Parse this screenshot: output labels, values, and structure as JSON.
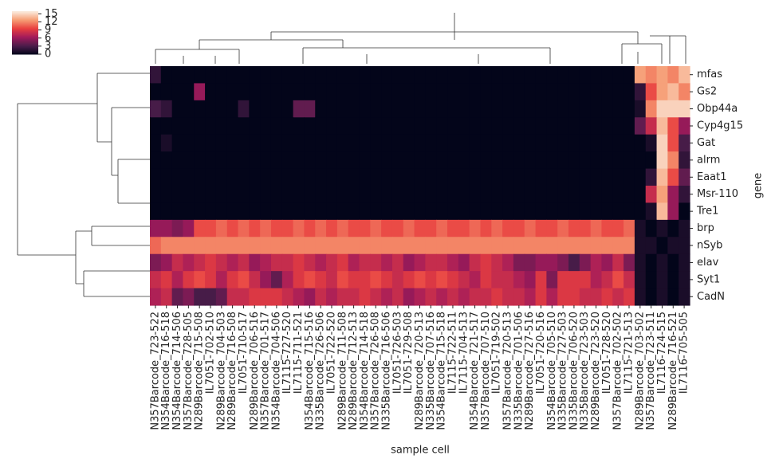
{
  "chart_data": {
    "type": "heatmap",
    "x_categories": [
      "N357Barcode_723-522",
      "N354Barcode_716-518",
      "N354Barcode_714-506",
      "N357Barcode_728-505",
      "N289Barcode_715-508",
      "IL7051-702-510",
      "N289Barcode_704-503",
      "N289Barcode_716-508",
      "IL7051-710-517",
      "N289Barcode_706-516",
      "N357Barcode_701-517",
      "N354Barcode_704-506",
      "IL7115-727-520",
      "IL7115-711-521",
      "N354Barcode_715-516",
      "N335Barcode_726-506",
      "IL7051-722-520",
      "N289Barcode_711-508",
      "N289Barcode_712-513",
      "N354Barcode_714-518",
      "N357Barcode_726-508",
      "N335Barcode_716-506",
      "IL7051-726-503",
      "IL7051-729-508",
      "N289Barcode_720-513",
      "N335Barcode_707-516",
      "N354Barcode_715-518",
      "IL7115-722-511",
      "IL7115-704-513",
      "N354Barcode_721-517",
      "N357Barcode_707-510",
      "IL7051-719-502",
      "N357Barcode_720-513",
      "N335Barcode_701-506",
      "N289Barcode_727-516",
      "IL7051-720-516",
      "N354Barcode_705-510",
      "N335Barcode_727-503",
      "N335Barcode_706-520",
      "N335Barcode_723-503",
      "N289Barcode_723-520",
      "IL7051-728-520",
      "N357Barcode_702-502",
      "IL7115-721-513",
      "N289Barcode_703-502",
      "N357Barcode_723-511",
      "IL7116-724-515",
      "N289Barcode_716-521",
      "IL7116-705-505"
    ],
    "y_categories": [
      "mfas",
      "Gs2",
      "Obp44a",
      "Cyp4g15",
      "Gat",
      "alrm",
      "Eaat1",
      "Msr-110",
      "Tre1",
      "brp",
      "nSyb",
      "elav",
      "Syt1",
      "CadN"
    ],
    "values": [
      [
        2,
        0,
        0,
        0,
        0,
        0,
        0,
        0,
        0,
        0,
        0,
        0,
        0,
        0,
        0,
        0,
        0,
        0,
        0,
        0,
        0,
        0,
        0,
        0,
        0,
        0,
        0,
        0,
        0,
        0,
        0,
        0,
        0,
        0,
        0,
        0,
        0,
        0,
        0,
        0,
        0,
        0,
        0,
        0,
        13,
        12,
        13,
        12,
        14
      ],
      [
        0,
        0,
        0,
        0,
        6,
        0,
        0,
        0,
        0,
        0,
        0,
        0,
        0,
        0,
        0,
        0,
        0,
        0,
        0,
        0,
        0,
        0,
        0,
        0,
        0,
        0,
        0,
        0,
        0,
        0,
        0,
        0,
        0,
        0,
        0,
        0,
        0,
        0,
        0,
        0,
        0,
        0,
        0,
        0,
        2,
        10,
        13,
        14,
        12
      ],
      [
        3,
        2,
        0,
        0,
        0,
        0,
        0,
        0,
        2,
        0,
        0,
        0,
        0,
        4,
        4,
        0,
        0,
        0,
        0,
        0,
        0,
        0,
        0,
        0,
        0,
        0,
        0,
        0,
        0,
        0,
        0,
        0,
        0,
        0,
        0,
        0,
        0,
        0,
        0,
        0,
        0,
        0,
        0,
        0,
        1,
        12,
        15,
        15,
        15
      ],
      [
        0,
        0,
        0,
        0,
        0,
        0,
        0,
        0,
        0,
        0,
        0,
        0,
        0,
        0,
        0,
        0,
        0,
        0,
        0,
        0,
        0,
        0,
        0,
        0,
        0,
        0,
        0,
        0,
        0,
        0,
        0,
        0,
        0,
        0,
        0,
        0,
        0,
        0,
        0,
        0,
        0,
        0,
        0,
        0,
        4,
        8,
        14,
        10,
        6
      ],
      [
        0,
        1,
        0,
        0,
        0,
        0,
        0,
        0,
        0,
        0,
        0,
        0,
        0,
        0,
        0,
        0,
        0,
        0,
        0,
        0,
        0,
        0,
        0,
        0,
        0,
        0,
        0,
        0,
        0,
        0,
        0,
        0,
        0,
        0,
        0,
        0,
        0,
        0,
        0,
        0,
        0,
        0,
        0,
        0,
        0,
        1,
        15,
        10,
        3
      ],
      [
        0,
        0,
        0,
        0,
        0,
        0,
        0,
        0,
        0,
        0,
        0,
        0,
        0,
        0,
        0,
        0,
        0,
        0,
        0,
        0,
        0,
        0,
        0,
        0,
        0,
        0,
        0,
        0,
        0,
        0,
        0,
        0,
        0,
        0,
        0,
        0,
        0,
        0,
        0,
        0,
        0,
        0,
        0,
        0,
        0,
        0,
        15,
        12,
        2
      ],
      [
        0,
        0,
        0,
        0,
        0,
        0,
        0,
        0,
        0,
        0,
        0,
        0,
        0,
        0,
        0,
        0,
        0,
        0,
        0,
        0,
        0,
        0,
        0,
        0,
        0,
        0,
        0,
        0,
        0,
        0,
        0,
        0,
        0,
        0,
        0,
        0,
        0,
        0,
        0,
        0,
        0,
        0,
        0,
        0,
        0,
        2,
        14,
        10,
        4
      ],
      [
        0,
        0,
        0,
        0,
        0,
        0,
        0,
        0,
        0,
        0,
        0,
        0,
        0,
        0,
        0,
        0,
        0,
        0,
        0,
        0,
        0,
        0,
        0,
        0,
        0,
        0,
        0,
        0,
        0,
        0,
        0,
        0,
        0,
        0,
        0,
        0,
        0,
        0,
        0,
        0,
        0,
        0,
        0,
        0,
        0,
        8,
        13,
        6,
        2
      ],
      [
        0,
        0,
        0,
        0,
        0,
        0,
        0,
        0,
        0,
        0,
        0,
        0,
        0,
        0,
        0,
        0,
        0,
        0,
        0,
        0,
        0,
        0,
        0,
        0,
        0,
        0,
        0,
        0,
        0,
        0,
        0,
        0,
        0,
        0,
        0,
        0,
        0,
        0,
        0,
        0,
        0,
        0,
        0,
        0,
        0,
        1,
        14,
        6,
        0
      ],
      [
        6,
        6,
        5,
        6,
        10,
        10,
        11,
        10,
        11,
        10,
        11,
        10,
        10,
        11,
        10,
        11,
        10,
        11,
        10,
        10,
        11,
        10,
        10,
        11,
        10,
        10,
        11,
        10,
        10,
        11,
        10,
        11,
        10,
        10,
        11,
        10,
        10,
        11,
        10,
        10,
        11,
        10,
        10,
        11,
        1,
        0,
        1,
        0,
        1
      ],
      [
        11,
        12,
        12,
        12,
        12,
        12,
        12,
        12,
        12,
        12,
        12,
        12,
        12,
        12,
        12,
        12,
        12,
        12,
        12,
        12,
        12,
        12,
        12,
        12,
        12,
        12,
        12,
        12,
        12,
        12,
        12,
        12,
        12,
        12,
        12,
        12,
        12,
        12,
        12,
        12,
        12,
        12,
        12,
        12,
        1,
        1,
        0,
        1,
        1
      ],
      [
        5,
        6,
        8,
        7,
        8,
        9,
        8,
        7,
        8,
        6,
        7,
        8,
        8,
        9,
        8,
        7,
        8,
        9,
        7,
        8,
        8,
        7,
        8,
        6,
        7,
        8,
        8,
        7,
        6,
        8,
        9,
        8,
        7,
        5,
        5,
        6,
        6,
        5,
        3,
        5,
        7,
        6,
        8,
        5,
        1,
        0,
        1,
        0,
        1
      ],
      [
        8,
        9,
        7,
        9,
        10,
        9,
        7,
        9,
        10,
        8,
        6,
        4,
        7,
        9,
        10,
        9,
        8,
        10,
        9,
        9,
        10,
        9,
        8,
        9,
        10,
        9,
        10,
        9,
        8,
        7,
        9,
        8,
        8,
        7,
        6,
        9,
        5,
        9,
        9,
        9,
        7,
        8,
        10,
        8,
        1,
        0,
        1,
        0,
        1
      ],
      [
        7,
        8,
        4,
        5,
        3,
        3,
        4,
        8,
        8,
        9,
        9,
        9,
        8,
        7,
        6,
        8,
        7,
        8,
        8,
        9,
        8,
        7,
        8,
        6,
        7,
        8,
        7,
        8,
        7,
        8,
        8,
        9,
        8,
        8,
        7,
        9,
        7,
        9,
        9,
        8,
        8,
        9,
        8,
        9,
        1,
        0,
        1,
        0,
        1
      ]
    ],
    "xlabel": "sample cell",
    "ylabel": "gene",
    "colorbar": {
      "lim": [
        0,
        16
      ],
      "ticks": [
        0,
        3,
        6,
        9,
        12,
        15
      ]
    }
  }
}
